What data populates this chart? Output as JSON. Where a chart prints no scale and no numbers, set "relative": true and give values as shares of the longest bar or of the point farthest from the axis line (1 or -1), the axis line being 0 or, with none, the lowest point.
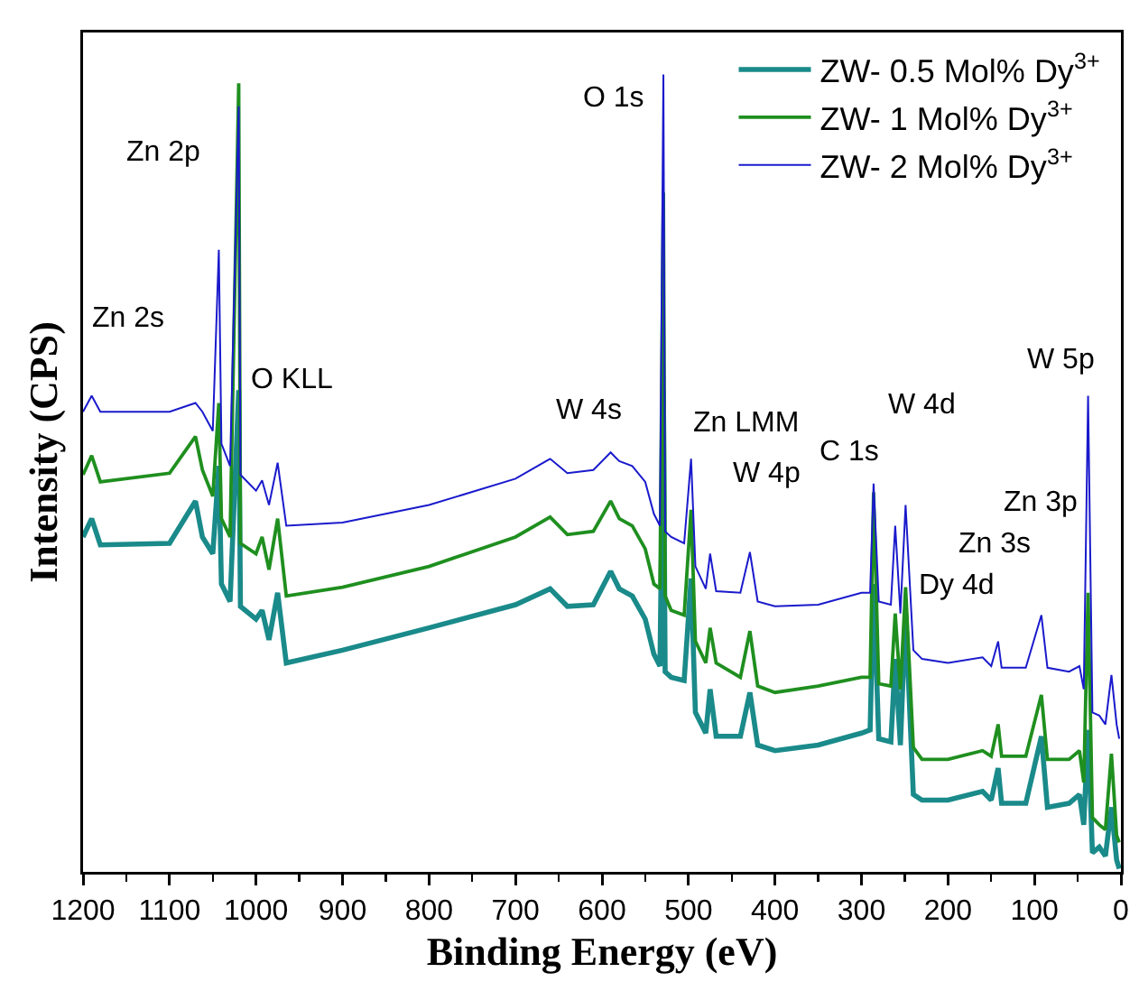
{
  "chart_data": {
    "type": "line",
    "relative": true,
    "xlabel": "Binding Energy (eV)",
    "ylabel": "Intensity (CPS)",
    "xlim": [
      1200,
      0
    ],
    "xticks": [
      1200,
      1100,
      1000,
      900,
      800,
      700,
      600,
      500,
      400,
      300,
      200,
      100,
      0
    ],
    "grid": false,
    "legend": "top right",
    "marker": "none",
    "line_style": "solid",
    "x": [
      1200,
      1190,
      1180,
      1100,
      1070,
      1062,
      1050,
      1043,
      1040,
      1030,
      1020,
      1018,
      1000,
      993,
      985,
      975,
      965,
      900,
      800,
      700,
      660,
      640,
      610,
      590,
      580,
      565,
      550,
      540,
      533,
      529,
      527,
      520,
      505,
      497,
      492,
      480,
      475,
      468,
      440,
      429,
      420,
      400,
      350,
      300,
      290,
      286,
      280,
      266,
      261,
      255,
      249,
      240,
      230,
      200,
      160,
      150,
      142,
      138,
      110,
      92,
      85,
      60,
      48,
      43,
      38,
      33,
      25,
      18,
      11,
      5,
      2
    ],
    "series": [
      {
        "name": "ZW- 0.5 Mol% Dy$^{3+}$",
        "color": "#1a8a8a",
        "values": [
          0.42,
          0.443,
          0.41,
          0.412,
          0.465,
          0.42,
          0.399,
          0.509,
          0.361,
          0.339,
          0.604,
          0.333,
          0.317,
          0.328,
          0.291,
          0.35,
          0.262,
          0.278,
          0.306,
          0.335,
          0.355,
          0.333,
          0.335,
          0.377,
          0.355,
          0.346,
          0.317,
          0.273,
          0.258,
          0.604,
          0.251,
          0.244,
          0.24,
          0.368,
          0.2,
          0.174,
          0.229,
          0.17,
          0.17,
          0.225,
          0.159,
          0.152,
          0.159,
          0.174,
          0.178,
          0.361,
          0.167,
          0.163,
          0.267,
          0.159,
          0.324,
          0.097,
          0.09,
          0.09,
          0.101,
          0.09,
          0.13,
          0.086,
          0.086,
          0.17,
          0.081,
          0.086,
          0.097,
          0.059,
          0.178,
          0.024,
          0.031,
          0.02,
          0.081,
          0.015,
          0.004
        ]
      },
      {
        "name": "ZW- 1 Mol% Dy$^{3+}$",
        "color": "#1f8f1f",
        "values": [
          0.498,
          0.522,
          0.489,
          0.5,
          0.546,
          0.504,
          0.471,
          0.588,
          0.443,
          0.42,
          0.989,
          0.412,
          0.399,
          0.42,
          0.379,
          0.443,
          0.346,
          0.357,
          0.383,
          0.42,
          0.445,
          0.423,
          0.427,
          0.465,
          0.443,
          0.434,
          0.405,
          0.361,
          0.355,
          0.852,
          0.346,
          0.328,
          0.322,
          0.454,
          0.289,
          0.262,
          0.306,
          0.262,
          0.244,
          0.302,
          0.233,
          0.225,
          0.233,
          0.244,
          0.244,
          0.476,
          0.236,
          0.233,
          0.324,
          0.229,
          0.357,
          0.156,
          0.141,
          0.141,
          0.152,
          0.145,
          0.185,
          0.145,
          0.145,
          0.222,
          0.141,
          0.141,
          0.152,
          0.112,
          0.35,
          0.068,
          0.059,
          0.053,
          0.148,
          0.046,
          0.037
        ]
      },
      {
        "name": "ZW- 2 Mol% Dy$^{3+}$",
        "color": "#1a1acc",
        "values": [
          0.577,
          0.597,
          0.577,
          0.577,
          0.588,
          0.577,
          0.553,
          0.78,
          0.537,
          0.509,
          0.96,
          0.498,
          0.478,
          0.491,
          0.46,
          0.513,
          0.434,
          0.438,
          0.46,
          0.493,
          0.518,
          0.5,
          0.504,
          0.526,
          0.515,
          0.509,
          0.489,
          0.449,
          0.434,
          1.0,
          0.427,
          0.42,
          0.412,
          0.518,
          0.383,
          0.355,
          0.399,
          0.352,
          0.35,
          0.401,
          0.339,
          0.333,
          0.335,
          0.35,
          0.35,
          0.487,
          0.339,
          0.335,
          0.434,
          0.324,
          0.46,
          0.278,
          0.267,
          0.262,
          0.269,
          0.258,
          0.289,
          0.256,
          0.256,
          0.322,
          0.256,
          0.251,
          0.258,
          0.229,
          0.597,
          0.2,
          0.196,
          0.185,
          0.247,
          0.185,
          0.167
        ]
      }
    ],
    "annotations": [
      "Zn 2s",
      "Zn 2p",
      "O KLL",
      "W 4s",
      "O 1s",
      "Zn LMM",
      "W 4p",
      "C 1s",
      "W 4d",
      "Dy 4d",
      "Zn 3s",
      "Zn 3p",
      "W 5p"
    ]
  }
}
